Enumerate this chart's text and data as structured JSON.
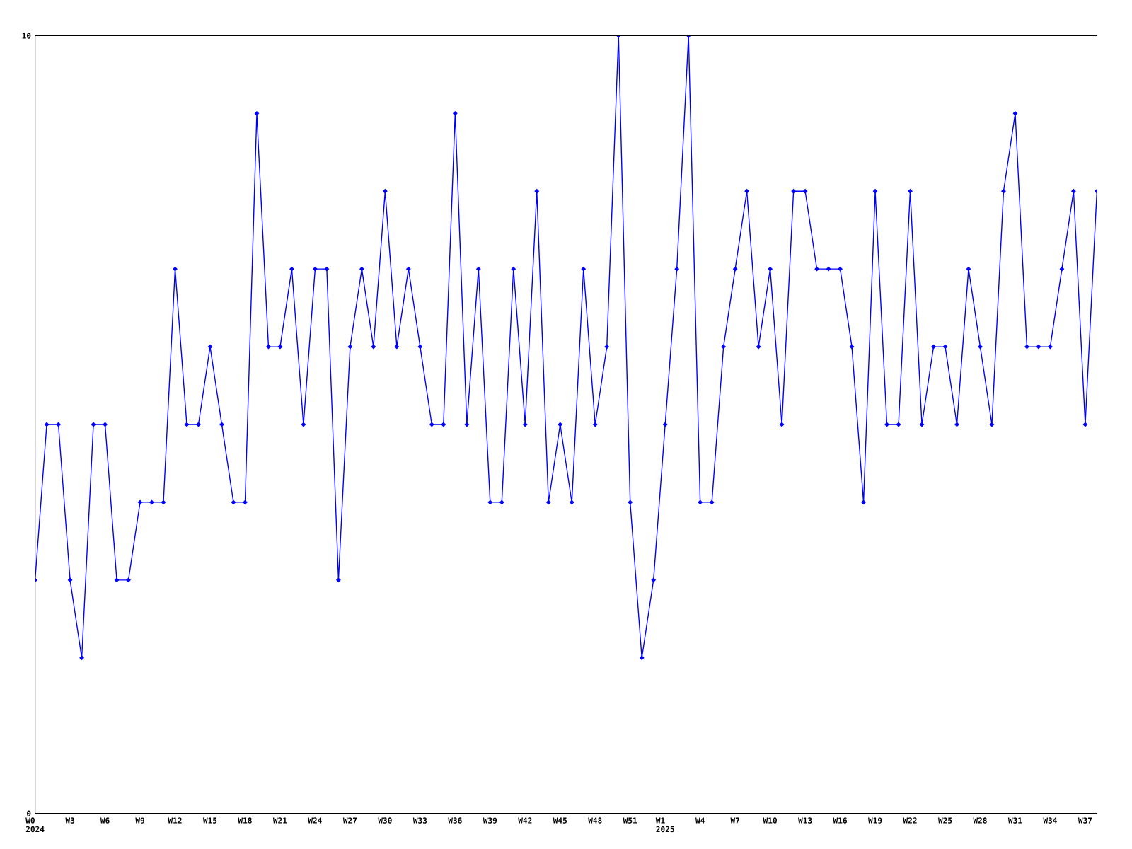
{
  "chart_data": {
    "type": "line",
    "categories": [
      "W0\n2024",
      null,
      null,
      "W3",
      null,
      null,
      "W6",
      null,
      null,
      "W9",
      null,
      null,
      "W12",
      null,
      null,
      "W15",
      null,
      null,
      "W18",
      null,
      null,
      "W21",
      null,
      null,
      "W24",
      null,
      null,
      "W27",
      null,
      null,
      "W30",
      null,
      null,
      "W33",
      null,
      null,
      "W36",
      null,
      null,
      "W39",
      null,
      null,
      "W42",
      null,
      null,
      "W45",
      null,
      null,
      "W48",
      null,
      null,
      "W51",
      null,
      null,
      "W1\n2025",
      null,
      null,
      "W4",
      null,
      null,
      "W7",
      null,
      null,
      "W10",
      null,
      null,
      "W13",
      null,
      null,
      "W16",
      null,
      null,
      "W19",
      null,
      null,
      "W22",
      null,
      null,
      "W25",
      null,
      null,
      "W28",
      null,
      null,
      "W31",
      null,
      null,
      "W34",
      null,
      null,
      "W37",
      null
    ],
    "series": [
      {
        "color": "#0000ff",
        "values": [
          3,
          5,
          5,
          3,
          2,
          5,
          5,
          3,
          3,
          4,
          4,
          4,
          7,
          5,
          5,
          6,
          5,
          4,
          4,
          9,
          6,
          6,
          7,
          5,
          7,
          7,
          3,
          6,
          7,
          6,
          8,
          6,
          7,
          6,
          5,
          5,
          9,
          5,
          7,
          4,
          4,
          7,
          5,
          8,
          4,
          5,
          4,
          7,
          5,
          6,
          10,
          4,
          2,
          3,
          5,
          7,
          10,
          4,
          4,
          6,
          7,
          8,
          6,
          7,
          5,
          8,
          8,
          7,
          7,
          7,
          6,
          4,
          8,
          5,
          5,
          8,
          5,
          6,
          6,
          5,
          7,
          6,
          5,
          8,
          9,
          6,
          6,
          6,
          7,
          8,
          5,
          8
        ]
      }
    ],
    "ylim": [
      0,
      10
    ],
    "yticks": [
      0,
      10
    ],
    "grid": false,
    "legend": false,
    "marker": "diamond",
    "line_style": "solid"
  }
}
